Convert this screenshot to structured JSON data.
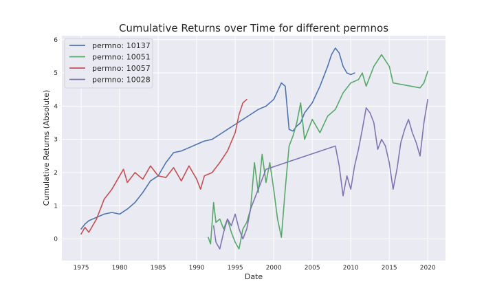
{
  "chart_data": {
    "type": "line",
    "title": "Cumulative Returns over Time for different permnos",
    "xlabel": "Date",
    "ylabel": "Cumulative Returns (Absolute)",
    "xlim": [
      1972.5,
      2022.3
    ],
    "ylim": [
      -0.65,
      6.12
    ],
    "x_ticks": [
      1975,
      1980,
      1985,
      1990,
      1995,
      2000,
      2005,
      2010,
      2015,
      2020
    ],
    "x_tick_labels": [
      "1975",
      "1980",
      "1985",
      "1990",
      "1995",
      "2000",
      "2005",
      "2010",
      "2015",
      "2020"
    ],
    "y_ticks": [
      0,
      1,
      2,
      3,
      4,
      5,
      6
    ],
    "y_tick_labels": [
      "0",
      "1",
      "2",
      "3",
      "4",
      "5",
      "6"
    ],
    "grid": true,
    "legend_position": "top-left",
    "background": "#eaeaf2",
    "series": [
      {
        "name": "permno: 10137",
        "color": "#4c72b0",
        "points": [
          [
            1975.0,
            0.3
          ],
          [
            1975.5,
            0.45
          ],
          [
            1976.0,
            0.55
          ],
          [
            1977.0,
            0.65
          ],
          [
            1978.0,
            0.75
          ],
          [
            1979.0,
            0.8
          ],
          [
            1980.0,
            0.75
          ],
          [
            1981.0,
            0.9
          ],
          [
            1982.0,
            1.1
          ],
          [
            1983.0,
            1.4
          ],
          [
            1984.0,
            1.75
          ],
          [
            1985.0,
            1.9
          ],
          [
            1986.0,
            2.3
          ],
          [
            1987.0,
            2.6
          ],
          [
            1988.0,
            2.65
          ],
          [
            1989.0,
            2.75
          ],
          [
            1990.0,
            2.85
          ],
          [
            1991.0,
            2.95
          ],
          [
            1992.0,
            3.0
          ],
          [
            1993.0,
            3.15
          ],
          [
            1994.0,
            3.3
          ],
          [
            1995.0,
            3.45
          ],
          [
            1996.0,
            3.6
          ],
          [
            1997.0,
            3.75
          ],
          [
            1998.0,
            3.9
          ],
          [
            1999.0,
            4.0
          ],
          [
            2000.0,
            4.2
          ],
          [
            2000.5,
            4.45
          ],
          [
            2001.0,
            4.7
          ],
          [
            2001.5,
            4.6
          ],
          [
            2002.0,
            3.3
          ],
          [
            2002.5,
            3.25
          ],
          [
            2003.0,
            3.4
          ],
          [
            2003.5,
            3.5
          ],
          [
            2004.0,
            3.8
          ],
          [
            2005.0,
            4.1
          ],
          [
            2006.0,
            4.6
          ],
          [
            2007.0,
            5.2
          ],
          [
            2007.5,
            5.55
          ],
          [
            2008.0,
            5.75
          ],
          [
            2008.5,
            5.6
          ],
          [
            2009.0,
            5.2
          ],
          [
            2009.5,
            5.0
          ],
          [
            2010.0,
            4.95
          ],
          [
            2010.5,
            5.0
          ]
        ]
      },
      {
        "name": "permno: 10051",
        "color": "#55a868",
        "points": [
          [
            1991.5,
            0.05
          ],
          [
            1991.8,
            -0.15
          ],
          [
            1992.2,
            1.1
          ],
          [
            1992.5,
            0.5
          ],
          [
            1993.0,
            0.6
          ],
          [
            1993.5,
            0.3
          ],
          [
            1994.0,
            0.6
          ],
          [
            1994.5,
            0.2
          ],
          [
            1995.0,
            -0.1
          ],
          [
            1995.5,
            -0.3
          ],
          [
            1996.0,
            0.3
          ],
          [
            1996.5,
            0.5
          ],
          [
            1997.0,
            0.9
          ],
          [
            1997.5,
            2.3
          ],
          [
            1998.0,
            1.4
          ],
          [
            1998.5,
            2.55
          ],
          [
            1999.0,
            1.7
          ],
          [
            1999.5,
            2.3
          ],
          [
            2000.0,
            1.5
          ],
          [
            2000.5,
            0.6
          ],
          [
            2001.0,
            0.05
          ],
          [
            2001.5,
            1.5
          ],
          [
            2002.0,
            2.8
          ],
          [
            2002.5,
            3.1
          ],
          [
            2003.0,
            3.5
          ],
          [
            2003.5,
            4.1
          ],
          [
            2004.0,
            3.0
          ],
          [
            2005.0,
            3.6
          ],
          [
            2006.0,
            3.2
          ],
          [
            2007.0,
            3.7
          ],
          [
            2008.0,
            3.9
          ],
          [
            2009.0,
            4.4
          ],
          [
            2010.0,
            4.7
          ],
          [
            2011.0,
            4.8
          ],
          [
            2011.5,
            5.0
          ],
          [
            2012.0,
            4.6
          ],
          [
            2013.0,
            5.2
          ],
          [
            2014.0,
            5.55
          ],
          [
            2015.0,
            5.2
          ],
          [
            2015.5,
            4.7
          ],
          [
            2019.0,
            4.55
          ],
          [
            2019.5,
            4.7
          ],
          [
            2020.0,
            5.05
          ]
        ]
      },
      {
        "name": "permno: 10057",
        "color": "#c44e52",
        "points": [
          [
            1975.0,
            0.15
          ],
          [
            1975.5,
            0.35
          ],
          [
            1976.0,
            0.2
          ],
          [
            1977.0,
            0.6
          ],
          [
            1978.0,
            1.2
          ],
          [
            1979.0,
            1.5
          ],
          [
            1980.0,
            1.9
          ],
          [
            1980.5,
            2.1
          ],
          [
            1981.0,
            1.7
          ],
          [
            1982.0,
            2.0
          ],
          [
            1983.0,
            1.8
          ],
          [
            1984.0,
            2.2
          ],
          [
            1985.0,
            1.9
          ],
          [
            1986.0,
            1.85
          ],
          [
            1987.0,
            2.15
          ],
          [
            1988.0,
            1.75
          ],
          [
            1989.0,
            2.2
          ],
          [
            1990.0,
            1.8
          ],
          [
            1990.5,
            1.5
          ],
          [
            1991.0,
            1.9
          ],
          [
            1992.0,
            2.0
          ],
          [
            1993.0,
            2.3
          ],
          [
            1994.0,
            2.65
          ],
          [
            1995.0,
            3.2
          ],
          [
            1995.5,
            3.75
          ],
          [
            1996.0,
            4.1
          ],
          [
            1996.5,
            4.2
          ]
        ]
      },
      {
        "name": "permno: 10028",
        "color": "#8172b2",
        "points": [
          [
            1992.2,
            0.4
          ],
          [
            1992.5,
            -0.1
          ],
          [
            1993.0,
            -0.3
          ],
          [
            1993.5,
            0.2
          ],
          [
            1994.0,
            0.6
          ],
          [
            1994.5,
            0.4
          ],
          [
            1995.0,
            0.75
          ],
          [
            1995.5,
            0.3
          ],
          [
            1996.0,
            0.0
          ],
          [
            1996.5,
            0.3
          ],
          [
            1997.0,
            0.9
          ],
          [
            1997.5,
            1.2
          ],
          [
            1998.0,
            1.5
          ],
          [
            1998.5,
            1.8
          ],
          [
            1999.0,
            2.1
          ],
          [
            2008.0,
            2.8
          ],
          [
            2008.5,
            2.2
          ],
          [
            2009.0,
            1.3
          ],
          [
            2009.5,
            1.9
          ],
          [
            2010.0,
            1.5
          ],
          [
            2010.5,
            2.2
          ],
          [
            2011.0,
            2.7
          ],
          [
            2011.5,
            3.3
          ],
          [
            2012.0,
            3.95
          ],
          [
            2012.5,
            3.8
          ],
          [
            2013.0,
            3.5
          ],
          [
            2013.5,
            2.7
          ],
          [
            2014.0,
            3.0
          ],
          [
            2014.5,
            2.8
          ],
          [
            2015.0,
            2.3
          ],
          [
            2015.5,
            1.5
          ],
          [
            2016.0,
            2.1
          ],
          [
            2016.5,
            2.9
          ],
          [
            2017.0,
            3.3
          ],
          [
            2017.5,
            3.6
          ],
          [
            2018.0,
            3.2
          ],
          [
            2018.5,
            2.9
          ],
          [
            2019.0,
            2.5
          ],
          [
            2019.5,
            3.5
          ],
          [
            2020.0,
            4.2
          ]
        ]
      }
    ]
  }
}
